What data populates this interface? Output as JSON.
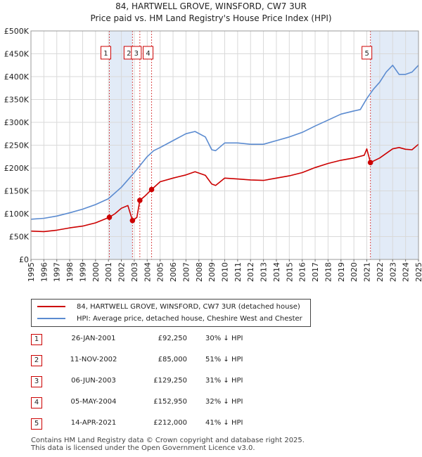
{
  "title_line1": "84, HARTWELL GROVE, WINSFORD, CW7 3UR",
  "title_line2": "Price paid vs. HM Land Registry's House Price Index (HPI)",
  "chart_data": {
    "type": "line",
    "title": "84, HARTWELL GROVE, WINSFORD, CW7 3UR — Price paid vs. HM Land Registry's House Price Index (HPI)",
    "xlabel": "",
    "ylabel": "",
    "xlim": [
      1995,
      2025
    ],
    "ylim": [
      0,
      500000
    ],
    "y_ticks": [
      0,
      50000,
      100000,
      150000,
      200000,
      250000,
      300000,
      350000,
      400000,
      450000,
      500000
    ],
    "y_tick_labels": [
      "£0",
      "£50K",
      "£100K",
      "£150K",
      "£200K",
      "£250K",
      "£300K",
      "£350K",
      "£400K",
      "£450K",
      "£500K"
    ],
    "x_tick_labels": [
      "1995",
      "1996",
      "1997",
      "1998",
      "1999",
      "2000",
      "2001",
      "2002",
      "2003",
      "2004",
      "2005",
      "2006",
      "2007",
      "2008",
      "2009",
      "2010",
      "2011",
      "2012",
      "2013",
      "2014",
      "2015",
      "2016",
      "2017",
      "2018",
      "2019",
      "2020",
      "2021",
      "2022",
      "2023",
      "2024",
      "2025"
    ],
    "grid": true,
    "series": [
      {
        "name": "84, HARTWELL GROVE, WINSFORD, CW7 3UR (detached house)",
        "color": "#cc0000",
        "x": [
          1995.0,
          1996.0,
          1997.0,
          1998.0,
          1999.0,
          2000.0,
          2001.07,
          2001.5,
          2002.0,
          2002.5,
          2002.86,
          2003.2,
          2003.43,
          2003.8,
          2004.34,
          2005.0,
          2006.0,
          2007.0,
          2007.7,
          2008.5,
          2009.0,
          2009.3,
          2010.0,
          2011.0,
          2012.0,
          2013.0,
          2014.0,
          2015.0,
          2016.0,
          2017.0,
          2018.0,
          2019.0,
          2020.0,
          2020.8,
          2021.0,
          2021.28,
          2022.0,
          2022.5,
          2023.0,
          2023.5,
          2024.0,
          2024.5,
          2025.0
        ],
        "values": [
          62000,
          61000,
          64000,
          69000,
          73000,
          80000,
          92250,
          100000,
          112000,
          118000,
          85000,
          92000,
          129250,
          138000,
          152950,
          170000,
          178000,
          185000,
          192000,
          184000,
          165000,
          162000,
          178000,
          176000,
          174000,
          173000,
          178000,
          183000,
          190000,
          201000,
          210000,
          217000,
          222000,
          228000,
          242000,
          212000,
          222000,
          232000,
          242000,
          245000,
          241000,
          240000,
          252000
        ]
      },
      {
        "name": "HPI: Average price, detached house, Cheshire West and Chester",
        "color": "#5b8bd0",
        "x": [
          1995.0,
          1996.0,
          1997.0,
          1998.0,
          1999.0,
          2000.0,
          2001.0,
          2002.0,
          2003.0,
          2004.0,
          2004.5,
          2005.0,
          2006.0,
          2007.0,
          2007.7,
          2008.5,
          2009.0,
          2009.3,
          2010.0,
          2011.0,
          2012.0,
          2013.0,
          2014.0,
          2015.0,
          2016.0,
          2017.0,
          2018.0,
          2019.0,
          2020.0,
          2020.5,
          2021.0,
          2021.5,
          2022.0,
          2022.5,
          2023.0,
          2023.5,
          2024.0,
          2024.5,
          2025.0
        ],
        "values": [
          88000,
          90000,
          95000,
          102000,
          110000,
          120000,
          133000,
          158000,
          190000,
          225000,
          238000,
          245000,
          260000,
          275000,
          280000,
          268000,
          240000,
          238000,
          255000,
          255000,
          252000,
          252000,
          260000,
          268000,
          278000,
          292000,
          305000,
          318000,
          325000,
          328000,
          352000,
          372000,
          388000,
          410000,
          425000,
          405000,
          405000,
          410000,
          425000
        ]
      }
    ],
    "transaction_markers": [
      {
        "id": "1",
        "year": 2001.07,
        "price": 92250
      },
      {
        "id": "2",
        "year": 2002.86,
        "price": 85000
      },
      {
        "id": "3",
        "year": 2003.43,
        "price": 129250
      },
      {
        "id": "4",
        "year": 2004.34,
        "price": 152950
      },
      {
        "id": "5",
        "year": 2021.28,
        "price": 212000
      }
    ],
    "shaded_ranges": [
      [
        2001.07,
        2002.86
      ],
      [
        2021.28,
        2025.0
      ]
    ]
  },
  "legend": {
    "property_label": "84, HARTWELL GROVE, WINSFORD, CW7 3UR (detached house)",
    "hpi_label": "HPI: Average price, detached house, Cheshire West and Chester"
  },
  "transactions": [
    {
      "num": "1",
      "date": "26-JAN-2001",
      "price": "£92,250",
      "hpi": "30% ↓ HPI"
    },
    {
      "num": "2",
      "date": "11-NOV-2002",
      "price": "£85,000",
      "hpi": "51% ↓ HPI"
    },
    {
      "num": "3",
      "date": "06-JUN-2003",
      "price": "£129,250",
      "hpi": "31% ↓ HPI"
    },
    {
      "num": "4",
      "date": "05-MAY-2004",
      "price": "£152,950",
      "hpi": "32% ↓ HPI"
    },
    {
      "num": "5",
      "date": "14-APR-2021",
      "price": "£212,000",
      "hpi": "41% ↓ HPI"
    }
  ],
  "footer": {
    "line1": "Contains HM Land Registry data © Crown copyright and database right 2025.",
    "line2": "This data is licensed under the Open Government Licence v3.0."
  }
}
